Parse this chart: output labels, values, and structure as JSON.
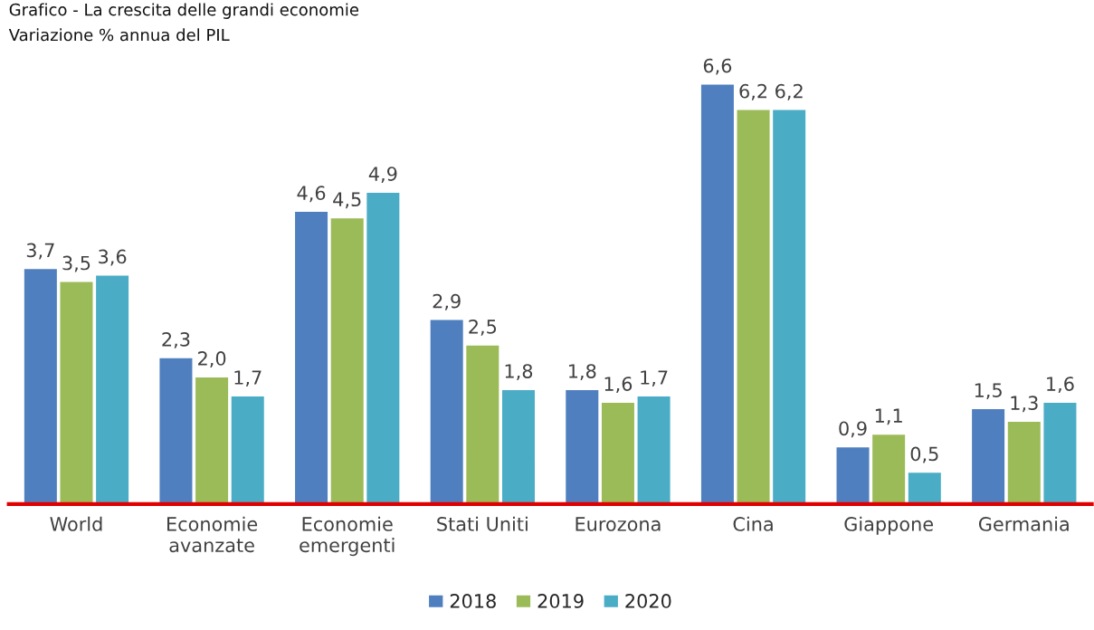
{
  "chart_data": {
    "type": "bar",
    "title": "Grafico - La crescita delle grandi economie",
    "subtitle": "Variazione % annua del PIL",
    "categories": [
      "World",
      "Economie\navanzate",
      "Economie\nemergenti",
      "Stati Uniti",
      "Eurozona",
      "Cina",
      "Giappone",
      "Germania"
    ],
    "series": [
      {
        "name": "2018",
        "color": "#4f7fbf",
        "values": [
          3.7,
          2.3,
          4.6,
          2.9,
          1.8,
          6.6,
          0.9,
          1.5
        ],
        "value_labels": [
          "3,7",
          "2,3",
          "4,6",
          "2,9",
          "1,8",
          "6,6",
          "0,9",
          "1,5"
        ]
      },
      {
        "name": "2019",
        "color": "#9bbb59",
        "values": [
          3.5,
          2.0,
          4.5,
          2.5,
          1.6,
          6.2,
          1.1,
          1.3
        ],
        "value_labels": [
          "3,5",
          "2,0",
          "4,5",
          "2,5",
          "1,6",
          "6,2",
          "1,1",
          "1,3"
        ]
      },
      {
        "name": "2020",
        "color": "#4bacc6",
        "values": [
          3.6,
          1.7,
          4.9,
          1.8,
          1.7,
          6.2,
          0.5,
          1.6
        ],
        "value_labels": [
          "3,6",
          "1,7",
          "4,9",
          "1,8",
          "1,7",
          "6,2",
          "0,5",
          "1,6"
        ]
      }
    ],
    "legend": "bottom",
    "grid": false
  }
}
